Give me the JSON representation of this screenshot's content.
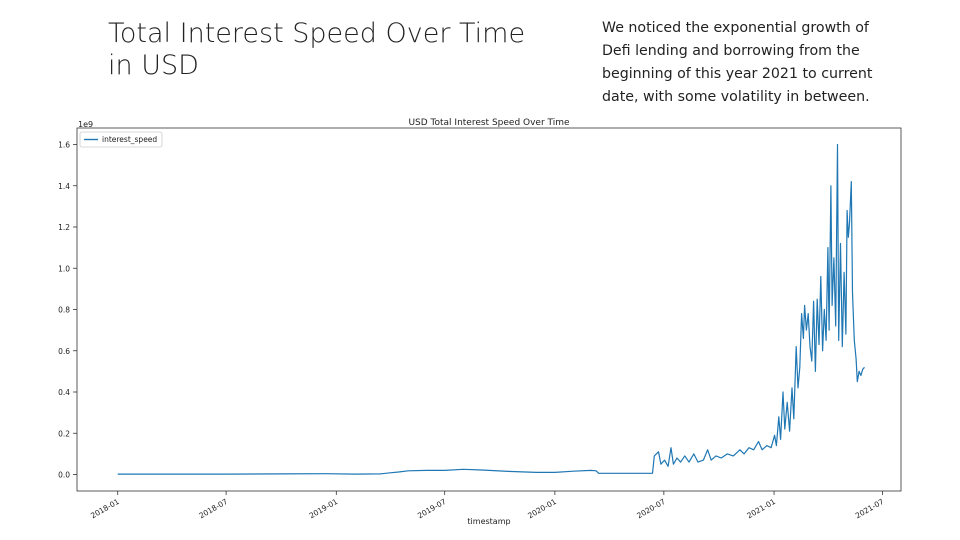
{
  "slide": {
    "title": "Total Interest Speed Over Time in USD",
    "note": "We noticed the exponential growth of Defi lending and borrowing  from the beginning of this year 2021 to current date, with some volatility in between."
  },
  "chart_data": {
    "type": "line",
    "title": "USD Total Interest Speed Over Time",
    "xlabel": "timestamp",
    "ylabel": "",
    "y_scale_label": "1e9",
    "x_tick_labels": [
      "2018-01",
      "2018-07",
      "2019-01",
      "2019-07",
      "2020-01",
      "2020-07",
      "2021-01",
      "2021-07"
    ],
    "y_ticks": [
      0.0,
      0.2,
      0.4,
      0.6,
      0.8,
      1.0,
      1.2,
      1.4,
      1.6
    ],
    "y_tick_labels": [
      "0.0",
      "0.2",
      "0.4",
      "0.6",
      "0.8",
      "1.0",
      "1.2",
      "1.4",
      "1.6"
    ],
    "ylim": [
      -0.08,
      1.68
    ],
    "xlim": [
      "2017-10-25",
      "2021-08-01"
    ],
    "grid": false,
    "legend": "upper-left",
    "series": [
      {
        "name": "interest_speed",
        "color": "#1f77b4",
        "points": [
          [
            "2018-01-01",
            0.002
          ],
          [
            "2018-04-01",
            0.002
          ],
          [
            "2018-07-01",
            0.002
          ],
          [
            "2018-10-01",
            0.003
          ],
          [
            "2018-12-15",
            0.004
          ],
          [
            "2019-02-01",
            0.002
          ],
          [
            "2019-03-15",
            0.003
          ],
          [
            "2019-04-01",
            0.008
          ],
          [
            "2019-04-15",
            0.012
          ],
          [
            "2019-05-01",
            0.018
          ],
          [
            "2019-06-01",
            0.02
          ],
          [
            "2019-07-01",
            0.02
          ],
          [
            "2019-08-01",
            0.025
          ],
          [
            "2019-09-01",
            0.022
          ],
          [
            "2019-10-15",
            0.015
          ],
          [
            "2019-12-01",
            0.01
          ],
          [
            "2020-01-01",
            0.01
          ],
          [
            "2020-02-01",
            0.016
          ],
          [
            "2020-03-01",
            0.02
          ],
          [
            "2020-03-10",
            0.018
          ],
          [
            "2020-03-14",
            0.006
          ],
          [
            "2020-04-15",
            0.006
          ],
          [
            "2020-06-12",
            0.006
          ],
          [
            "2020-06-15",
            0.09
          ],
          [
            "2020-06-22",
            0.11
          ],
          [
            "2020-06-26",
            0.05
          ],
          [
            "2020-07-02",
            0.07
          ],
          [
            "2020-07-08",
            0.04
          ],
          [
            "2020-07-13",
            0.13
          ],
          [
            "2020-07-17",
            0.05
          ],
          [
            "2020-07-23",
            0.08
          ],
          [
            "2020-07-29",
            0.06
          ],
          [
            "2020-08-05",
            0.09
          ],
          [
            "2020-08-12",
            0.06
          ],
          [
            "2020-08-20",
            0.1
          ],
          [
            "2020-08-27",
            0.06
          ],
          [
            "2020-09-05",
            0.07
          ],
          [
            "2020-09-12",
            0.12
          ],
          [
            "2020-09-18",
            0.07
          ],
          [
            "2020-09-26",
            0.09
          ],
          [
            "2020-10-05",
            0.08
          ],
          [
            "2020-10-15",
            0.1
          ],
          [
            "2020-10-25",
            0.09
          ],
          [
            "2020-11-05",
            0.12
          ],
          [
            "2020-11-12",
            0.1
          ],
          [
            "2020-11-20",
            0.13
          ],
          [
            "2020-11-28",
            0.12
          ],
          [
            "2020-12-06",
            0.16
          ],
          [
            "2020-12-12",
            0.12
          ],
          [
            "2020-12-20",
            0.14
          ],
          [
            "2020-12-27",
            0.13
          ],
          [
            "2021-01-02",
            0.19
          ],
          [
            "2021-01-05",
            0.14
          ],
          [
            "2021-01-09",
            0.28
          ],
          [
            "2021-01-12",
            0.17
          ],
          [
            "2021-01-16",
            0.4
          ],
          [
            "2021-01-19",
            0.22
          ],
          [
            "2021-01-23",
            0.35
          ],
          [
            "2021-01-27",
            0.21
          ],
          [
            "2021-01-31",
            0.42
          ],
          [
            "2021-02-03",
            0.27
          ],
          [
            "2021-02-07",
            0.62
          ],
          [
            "2021-02-10",
            0.42
          ],
          [
            "2021-02-13",
            0.52
          ],
          [
            "2021-02-16",
            0.78
          ],
          [
            "2021-02-19",
            0.66
          ],
          [
            "2021-02-21",
            0.82
          ],
          [
            "2021-02-24",
            0.7
          ],
          [
            "2021-02-27",
            0.78
          ],
          [
            "2021-03-02",
            0.62
          ],
          [
            "2021-03-05",
            0.55
          ],
          [
            "2021-03-08",
            0.84
          ],
          [
            "2021-03-11",
            0.5
          ],
          [
            "2021-03-14",
            0.85
          ],
          [
            "2021-03-17",
            0.63
          ],
          [
            "2021-03-20",
            0.96
          ],
          [
            "2021-03-23",
            0.6
          ],
          [
            "2021-03-26",
            0.8
          ],
          [
            "2021-03-29",
            0.65
          ],
          [
            "2021-04-01",
            1.1
          ],
          [
            "2021-04-03",
            0.7
          ],
          [
            "2021-04-06",
            1.4
          ],
          [
            "2021-04-08",
            0.82
          ],
          [
            "2021-04-11",
            1.05
          ],
          [
            "2021-04-14",
            0.72
          ],
          [
            "2021-04-17",
            1.6
          ],
          [
            "2021-04-19",
            0.65
          ],
          [
            "2021-04-22",
            1.12
          ],
          [
            "2021-04-25",
            0.62
          ],
          [
            "2021-04-28",
            0.98
          ],
          [
            "2021-05-01",
            0.68
          ],
          [
            "2021-05-03",
            1.28
          ],
          [
            "2021-05-05",
            1.15
          ],
          [
            "2021-05-07",
            1.22
          ],
          [
            "2021-05-10",
            1.42
          ],
          [
            "2021-05-12",
            0.88
          ],
          [
            "2021-05-15",
            0.65
          ],
          [
            "2021-05-18",
            0.56
          ],
          [
            "2021-05-20",
            0.45
          ],
          [
            "2021-05-23",
            0.5
          ],
          [
            "2021-05-26",
            0.48
          ],
          [
            "2021-05-29",
            0.51
          ],
          [
            "2021-06-01",
            0.52
          ]
        ]
      }
    ]
  }
}
